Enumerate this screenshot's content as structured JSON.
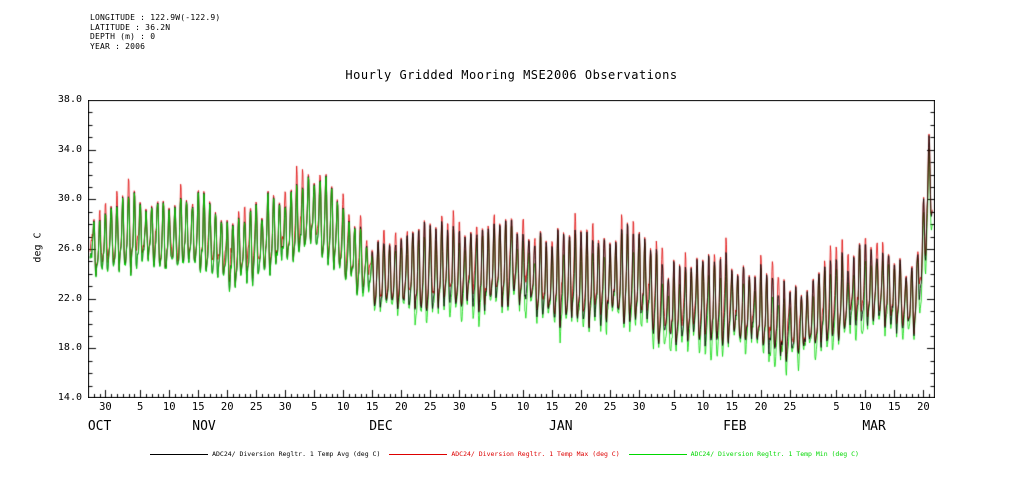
{
  "header": {
    "lines": [
      "LONGITUDE : 122.9W(-122.9)",
      "LATITUDE : 36.2N",
      "DEPTH (m) : 0",
      "YEAR : 2006"
    ]
  },
  "chart_data": {
    "type": "line",
    "title": "Hourly Gridded Mooring MSE2006 Observations",
    "xlabel": "",
    "ylabel": "deg C",
    "ylim": [
      14.0,
      38.0
    ],
    "grid": "off",
    "legend_position": "bottom",
    "x_unit": "day index (0 = 27 OCT, span to ~22 MAR)",
    "x_day_span": 146,
    "y_ticks": [
      {
        "label": "38.0",
        "value": 38
      },
      {
        "label": "34.0",
        "value": 34
      },
      {
        "label": "30.0",
        "value": 30
      },
      {
        "label": "26.0",
        "value": 26
      },
      {
        "label": "22.0",
        "value": 22
      },
      {
        "label": "18.0",
        "value": 18
      },
      {
        "label": "14.0",
        "value": 14
      }
    ],
    "x_ticks": [
      {
        "label": "30",
        "day": 3
      },
      {
        "label": "5",
        "day": 9
      },
      {
        "label": "10",
        "day": 14
      },
      {
        "label": "15",
        "day": 19
      },
      {
        "label": "20",
        "day": 24
      },
      {
        "label": "25",
        "day": 29
      },
      {
        "label": "30",
        "day": 34
      },
      {
        "label": "5",
        "day": 39
      },
      {
        "label": "10",
        "day": 44
      },
      {
        "label": "15",
        "day": 49
      },
      {
        "label": "20",
        "day": 54
      },
      {
        "label": "25",
        "day": 59
      },
      {
        "label": "30",
        "day": 64
      },
      {
        "label": "5",
        "day": 70
      },
      {
        "label": "10",
        "day": 75
      },
      {
        "label": "15",
        "day": 80
      },
      {
        "label": "20",
        "day": 85
      },
      {
        "label": "25",
        "day": 90
      },
      {
        "label": "30",
        "day": 95
      },
      {
        "label": "5",
        "day": 101
      },
      {
        "label": "10",
        "day": 106
      },
      {
        "label": "15",
        "day": 111
      },
      {
        "label": "20",
        "day": 116
      },
      {
        "label": "25",
        "day": 121
      },
      {
        "label": "5",
        "day": 129
      },
      {
        "label": "10",
        "day": 134
      },
      {
        "label": "15",
        "day": 139
      },
      {
        "label": "20",
        "day": 144
      }
    ],
    "x_months": [
      {
        "label": "OCT",
        "day": 2
      },
      {
        "label": "NOV",
        "day": 20
      },
      {
        "label": "DEC",
        "day": 50.5
      },
      {
        "label": "JAN",
        "day": 81.5
      },
      {
        "label": "FEB",
        "day": 111.5
      },
      {
        "label": "MAR",
        "day": 135.5
      }
    ],
    "series": [
      {
        "name": "ADC24/ Diversion Regltr. 1 Temp Avg (deg C)",
        "color": "#000000",
        "role": "avg"
      },
      {
        "name": "ADC24/ Diversion Regltr. 1 Temp Max (deg C)",
        "color": "#dd0000",
        "role": "max"
      },
      {
        "name": "ADC24/ Diversion Regltr. 1 Temp Min (deg C)",
        "color": "#00d800",
        "role": "min"
      }
    ],
    "approx_daily_envelope": {
      "columns": [
        "day_index",
        "mean_degC",
        "half_range_degC"
      ],
      "points": [
        [
          0,
          28.5,
          5.5
        ],
        [
          1,
          25.8,
          3.2
        ],
        [
          3,
          26.2,
          3.4
        ],
        [
          6,
          26.8,
          3.2
        ],
        [
          10,
          27.0,
          3.0
        ],
        [
          14,
          26.6,
          3.0
        ],
        [
          18,
          27.2,
          3.3
        ],
        [
          22,
          26.2,
          3.0
        ],
        [
          25,
          25.2,
          3.4
        ],
        [
          28,
          26.0,
          3.3
        ],
        [
          32,
          26.8,
          3.4
        ],
        [
          36,
          27.6,
          3.6
        ],
        [
          38,
          28.6,
          4.3
        ],
        [
          41,
          28.0,
          4.0
        ],
        [
          44,
          26.2,
          3.4
        ],
        [
          47,
          24.4,
          3.0
        ],
        [
          50,
          23.6,
          3.0
        ],
        [
          53,
          23.8,
          3.3
        ],
        [
          57,
          24.0,
          3.8
        ],
        [
          61,
          24.2,
          4.2
        ],
        [
          65,
          24.0,
          4.0
        ],
        [
          69,
          24.2,
          4.2
        ],
        [
          73,
          24.8,
          4.4
        ],
        [
          76,
          23.8,
          4.0
        ],
        [
          80,
          23.0,
          3.9
        ],
        [
          84,
          23.4,
          4.1
        ],
        [
          88,
          23.0,
          4.3
        ],
        [
          92,
          23.4,
          4.3
        ],
        [
          95,
          23.6,
          4.4
        ],
        [
          98,
          21.6,
          3.8
        ],
        [
          101,
          21.0,
          3.6
        ],
        [
          105,
          21.6,
          3.7
        ],
        [
          109,
          21.4,
          3.7
        ],
        [
          113,
          21.2,
          3.7
        ],
        [
          117,
          20.6,
          3.5
        ],
        [
          120,
          19.8,
          3.4
        ],
        [
          123,
          19.6,
          3.3
        ],
        [
          126,
          20.8,
          3.4
        ],
        [
          130,
          21.8,
          3.4
        ],
        [
          134,
          22.8,
          3.5
        ],
        [
          137,
          22.6,
          3.3
        ],
        [
          140,
          21.8,
          3.1
        ],
        [
          142.5,
          21.6,
          3.0
        ],
        [
          143.8,
          25.0,
          4.0
        ],
        [
          144.8,
          31.5,
          4.3
        ],
        [
          145.6,
          30.0,
          3.0
        ]
      ]
    }
  }
}
